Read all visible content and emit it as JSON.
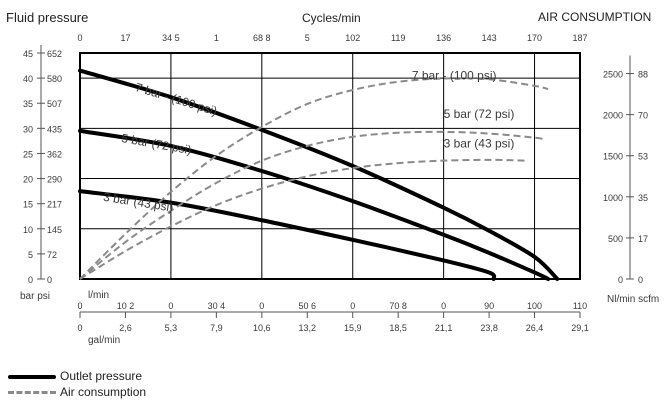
{
  "titles": {
    "left": "Fluid pressure",
    "top": "Cycles/min",
    "right": "AIR CONSUMPTION"
  },
  "axis_units": {
    "left": "bar psi",
    "right": "Nl/min scfm",
    "bottom_lmin": "l/min",
    "bottom_gal": "gal/min"
  },
  "legend": {
    "outlet": "Outlet pressure",
    "air": "Air consumption"
  },
  "colors": {
    "outlet": "#000000",
    "air": "#8a8a8a",
    "grid": "#000000",
    "text": "#3a3a3a"
  },
  "chart_data": {
    "type": "line",
    "x_lmin_range": [
      0,
      110
    ],
    "y_bar_range": [
      0,
      45
    ],
    "y_air_range": [
      0,
      2750
    ],
    "ticks": {
      "bar": [
        "0",
        "5",
        "10",
        "15",
        "20",
        "25",
        "30",
        "35",
        "40",
        "45"
      ],
      "psi": [
        "0",
        "72",
        "145",
        "217",
        "290",
        "362",
        "435",
        "507",
        "580",
        "652"
      ],
      "cycles": [
        "0",
        "17",
        "34 5",
        "1",
        "68 8",
        "5",
        "102",
        "119",
        "136",
        "143",
        "170",
        "187"
      ],
      "lmin": [
        "0",
        "10 2",
        "0",
        "30 4",
        "0",
        "50 6",
        "0",
        "70 8",
        "0",
        "90",
        "100",
        "110"
      ],
      "gal": [
        "0",
        "2,6",
        "5,3",
        "7,9",
        "10,6",
        "13,2",
        "15,9",
        "18,5",
        "21,1",
        "23,8",
        "26,4",
        "29,1"
      ],
      "nlmin": [
        "0",
        "500",
        "1000",
        "1500",
        "2000",
        "2500"
      ],
      "scfm": [
        "0",
        "17",
        "35",
        "53",
        "70",
        "88"
      ]
    },
    "series": [
      {
        "name": "7 bar - (100 psi)",
        "kind": "outlet",
        "x": [
          0,
          20,
          40,
          60,
          80,
          90,
          100,
          105
        ],
        "y": [
          41.5,
          36.2,
          29.7,
          22.5,
          14.2,
          9.6,
          4.4,
          0
        ]
      },
      {
        "name": "5 bar (72 psi)",
        "kind": "outlet",
        "x": [
          0,
          20,
          40,
          60,
          80,
          90,
          100,
          103
        ],
        "y": [
          29.5,
          26.5,
          21.5,
          15.5,
          8.8,
          5.2,
          1.3,
          0
        ]
      },
      {
        "name": "3 bar (43 psi)",
        "kind": "outlet",
        "x": [
          0,
          20,
          40,
          60,
          80,
          90,
          91
        ],
        "y": [
          17.5,
          15.2,
          11.7,
          7.8,
          3.7,
          1.3,
          0
        ]
      },
      {
        "name": "7 bar - (100 psi)",
        "kind": "air",
        "x": [
          0,
          10,
          20,
          30,
          40,
          50,
          60,
          70,
          80,
          90,
          100,
          103
        ],
        "y": [
          0,
          550,
          1060,
          1500,
          1850,
          2130,
          2300,
          2400,
          2440,
          2430,
          2350,
          2310
        ]
      },
      {
        "name": "5 bar (72 psi)",
        "kind": "air",
        "x": [
          0,
          10,
          20,
          30,
          40,
          50,
          60,
          70,
          80,
          90,
          100,
          102
        ],
        "y": [
          0,
          450,
          830,
          1170,
          1440,
          1620,
          1730,
          1780,
          1790,
          1770,
          1720,
          1700
        ]
      },
      {
        "name": "3 bar (43 psi)",
        "kind": "air",
        "x": [
          0,
          10,
          20,
          30,
          40,
          50,
          60,
          70,
          80,
          90,
          98
        ],
        "y": [
          0,
          340,
          640,
          900,
          1100,
          1250,
          1350,
          1410,
          1440,
          1450,
          1440
        ]
      }
    ],
    "labels": [
      {
        "text": "7 bar - (100 psi)",
        "kind": "outlet",
        "at_x": 12,
        "at_y": 37.5
      },
      {
        "text": "5 bar (72 psi)",
        "kind": "outlet",
        "at_x": 9,
        "at_y": 27.3
      },
      {
        "text": "3 bar (43 psi)",
        "kind": "outlet",
        "at_x": 5,
        "at_y": 15.6
      },
      {
        "text": "7 bar - (100 psi)",
        "kind": "air",
        "at_x": 73,
        "at_y": 2430
      },
      {
        "text": "5 bar (72 psi)",
        "kind": "air",
        "at_x": 80,
        "at_y": 1960
      },
      {
        "text": "3 bar (43 psi)",
        "kind": "air",
        "at_x": 80,
        "at_y": 1600
      }
    ],
    "grid": true
  }
}
